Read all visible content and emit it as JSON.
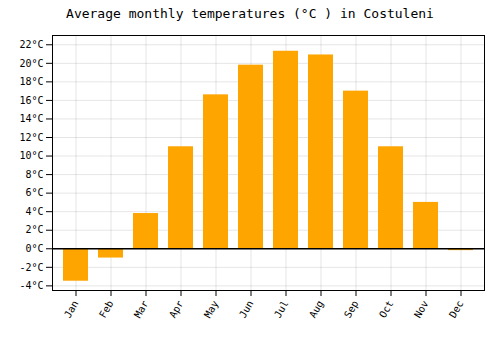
{
  "chart_data": {
    "type": "bar",
    "title": "Average monthly temperatures (°C ) in Costuleni",
    "categories": [
      "Jan",
      "Feb",
      "Mar",
      "Apr",
      "May",
      "Jun",
      "Jul",
      "Aug",
      "Sep",
      "Oct",
      "Nov",
      "Dec"
    ],
    "values": [
      -3.5,
      -1.0,
      3.8,
      11.0,
      16.6,
      19.8,
      21.3,
      20.9,
      17.0,
      11.0,
      5.0,
      -0.2
    ],
    "color": "#FFA500",
    "ylim": [
      -4.5,
      23
    ],
    "yticks": [
      {
        "value": -4,
        "label": "-4°C"
      },
      {
        "value": -2,
        "label": "-2°C"
      },
      {
        "value": 0,
        "label": "0°C"
      },
      {
        "value": 2,
        "label": "2°C"
      },
      {
        "value": 4,
        "label": "4°C"
      },
      {
        "value": 6,
        "label": "6°C"
      },
      {
        "value": 8,
        "label": "8°C"
      },
      {
        "value": 10,
        "label": "10°C"
      },
      {
        "value": 12,
        "label": "12°C"
      },
      {
        "value": 14,
        "label": "14°C"
      },
      {
        "value": 16,
        "label": "16°C"
      },
      {
        "value": 18,
        "label": "18°C"
      },
      {
        "value": 20,
        "label": "20°C"
      },
      {
        "value": 22,
        "label": "22°C"
      }
    ],
    "grid": true
  }
}
